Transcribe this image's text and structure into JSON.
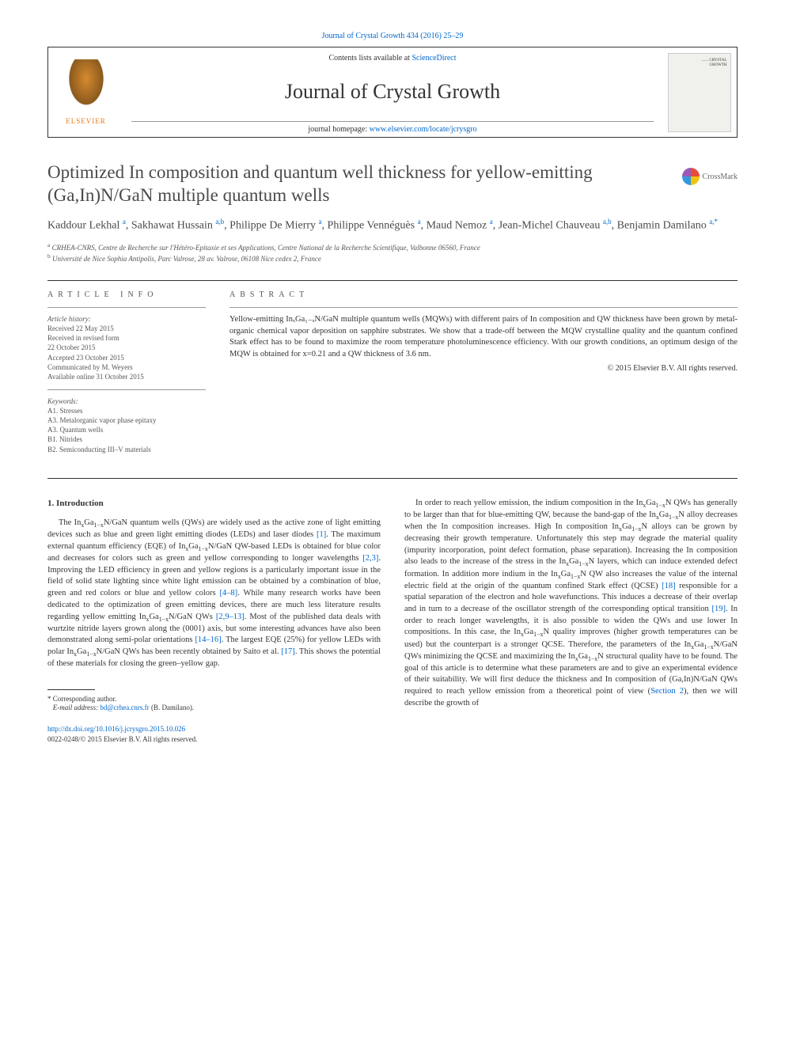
{
  "meta": {
    "top_citation": "Journal of Crystal Growth 434 (2016) 25–29",
    "contents_prefix": "Contents lists available at ",
    "contents_link": "ScienceDirect",
    "journal_name": "Journal of Crystal Growth",
    "homepage_prefix": "journal homepage: ",
    "homepage_link": "www.elsevier.com/locate/jcrysgro",
    "publisher_label": "ELSEVIER",
    "cover_line1": "....... CRYSTAL",
    "cover_line2": "GROWTH",
    "crossmark_label": "CrossMark"
  },
  "title": "Optimized In composition and quantum well thickness for yellow-emitting (Ga,In)N/GaN multiple quantum wells",
  "authors_html": "Kaddour Lekhal <sup>a</sup>, Sakhawat Hussain <sup>a,b</sup>, Philippe De Mierry <sup>a</sup>, Philippe Vennéguès <sup>a</sup>, Maud Nemoz <sup>a</sup>, Jean-Michel Chauveau <sup>a,b</sup>, Benjamin Damilano <sup>a,*</sup>",
  "affiliations": {
    "a": "CRHEA-CNRS, Centre de Recherche sur l'Hétéro-Epitaxie et ses Applications, Centre National de la Recherche Scientifique, Valbonne 06560, France",
    "b": "Université de Nice Sophia Antipolis, Parc Valrose, 28 av. Valrose, 06108 Nice cedex 2, France"
  },
  "article_info": {
    "heading": "ARTICLE INFO",
    "history_label": "Article history:",
    "history": [
      "Received 22 May 2015",
      "Received in revised form",
      "22 October 2015",
      "Accepted 23 October 2015",
      "Communicated by M. Weyers",
      "Available online 31 October 2015"
    ],
    "keywords_label": "Keywords:",
    "keywords": [
      "A1. Stresses",
      "A3. Metalorganic vapor phase epitaxy",
      "A3. Quantum wells",
      "B1. Nitrides",
      "B2. Semiconducting III–V materials"
    ]
  },
  "abstract": {
    "heading": "ABSTRACT",
    "text": "Yellow-emitting InₓGa₁₋ₓN/GaN multiple quantum wells (MQWs) with different pairs of In composition and QW thickness have been grown by metal-organic chemical vapor deposition on sapphire substrates. We show that a trade-off between the MQW crystalline quality and the quantum confined Stark effect has to be found to maximize the room temperature photoluminescence efficiency. With our growth conditions, an optimum design of the MQW is obtained for x=0.21 and a QW thickness of 3.6 nm.",
    "copyright": "© 2015 Elsevier B.V. All rights reserved."
  },
  "body": {
    "section1_heading": "1.  Introduction",
    "col1_p1_a": "The In",
    "col1_p1_b": "Ga",
    "col1_p1_c": "N/GaN quantum wells (QWs) are widely used as the active zone of light emitting devices such as blue and green light emitting diodes (LEDs) and laser diodes ",
    "ref1": "[1]",
    "col1_p1_d": ". The maximum external quantum efficiency (EQE) of In",
    "col1_p1_e": "Ga",
    "col1_p1_f": "N/GaN QW-based LEDs is obtained for blue color and decreases for colors such as green and yellow corresponding to longer wavelengths ",
    "ref23": "[2,3]",
    "col1_p1_g": ". Improving the LED efficiency in green and yellow regions is a particularly important issue in the field of solid state lighting since white light emission can be obtained by a combination of blue, green and red colors or blue and yellow colors ",
    "ref48": "[4–8]",
    "col1_p1_h": ". While many research works have been dedicated to the optimization of green emitting devices, there are much less literature results regarding yellow emitting In",
    "col1_p1_i": "Ga",
    "col1_p1_j": "N/GaN QWs ",
    "ref2913": "[2,9–13]",
    "col1_p1_k": ". Most of the published data deals with wurtzite nitride layers grown along the (0001) axis, but some interesting advances have also been demonstrated along semi-polar orientations ",
    "ref1416": "[14–16]",
    "col1_p1_l": ". The largest EQE (25%) for yellow LEDs with polar In",
    "col1_p1_m": "Ga",
    "col1_p1_n": "N/GaN QWs has been recently obtained by Saito et al. ",
    "ref17": "[17]",
    "col1_p1_o": ". This shows the potential of these materials for closing the green–yellow gap.",
    "col2_p1_a": "In order to reach yellow emission, the indium composition in the In",
    "col2_p1_b": "Ga",
    "col2_p1_c": "N QWs has generally to be larger than that for blue-emitting QW, because the band-gap of the In",
    "col2_p1_d": "Ga",
    "col2_p1_e": "N alloy decreases when the In composition increases. High In composition In",
    "col2_p1_f": "Ga",
    "col2_p1_g": "N alloys can be grown by decreasing their growth temperature. Unfortunately this step may degrade the material quality (impurity incorporation, point defect formation, phase separation). Increasing the In composition also leads to the increase of the stress in the In",
    "col2_p1_h": "Ga",
    "col2_p1_i": "N layers, which can induce extended defect formation. In addition more indium in the In",
    "col2_p1_j": "Ga",
    "col2_p1_k": "N QW also increases the value of the internal electric field at the origin of the quantum confined Stark effect (QCSE) ",
    "ref18": "[18]",
    "col2_p1_l": " responsible for a spatial separation of the electron and hole wavefunctions. This induces a decrease of their overlap and in turn to a decrease of the oscillator strength of the corresponding optical transition ",
    "ref19": "[19]",
    "col2_p1_m": ". In order to reach longer wavelengths, it is also possible to widen the QWs and use lower In compositions. In this case, the In",
    "col2_p1_n": "Ga",
    "col2_p1_o": "N quality improves (higher growth temperatures can be used) but the counterpart is a stronger QCSE. Therefore, the parameters of the In",
    "col2_p1_p": "Ga",
    "col2_p1_q": "N/GaN QWs minimizing the QCSE and maximizing the In",
    "col2_p1_r": "Ga",
    "col2_p1_s": "N structural quality have to be found. The goal of this article is to determine what these parameters are and to give an experimental evidence of their suitability. We will first deduce the thickness and In composition of (Ga,In)N/GaN QWs required to reach yellow emission from a theoretical point of view (",
    "sec2": "Section 2",
    "col2_p1_t": "), then we will describe the growth of"
  },
  "footnotes": {
    "corr_label": "* Corresponding author.",
    "email_label": "E-mail address: ",
    "email": "bd@crhea.cnrs.fr",
    "email_person": " (B. Damilano)."
  },
  "doi": {
    "link": "http://dx.doi.org/10.1016/j.jcrysgro.2015.10.026",
    "issn_line": "0022-0248/© 2015 Elsevier B.V. All rights reserved."
  },
  "colors": {
    "link": "#0066cc",
    "text": "#333333",
    "muted": "#555555",
    "border": "#333333"
  }
}
